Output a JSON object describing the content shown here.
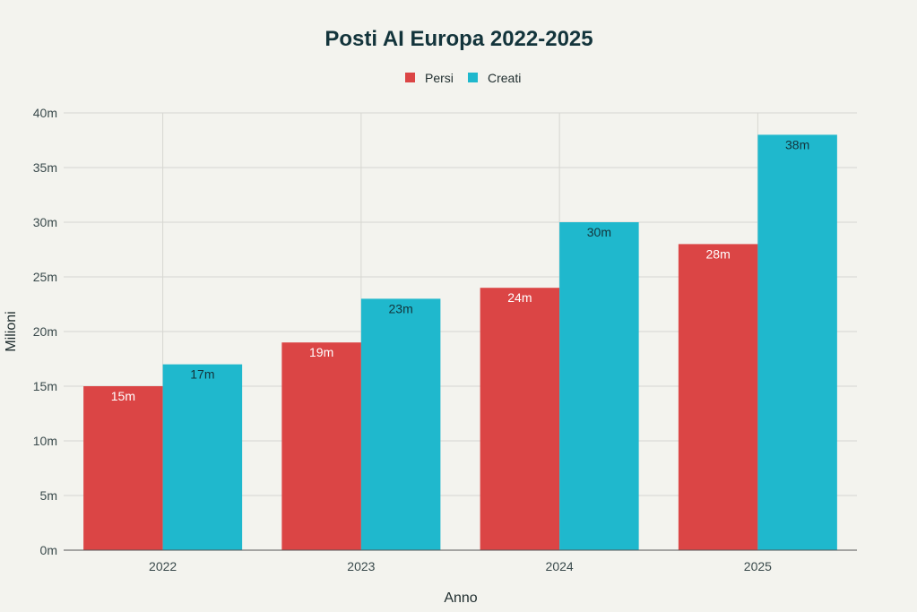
{
  "chart_data": {
    "type": "bar",
    "title": "Posti AI Europa 2022-2025",
    "xlabel": "Anno",
    "ylabel": "Milioni",
    "categories": [
      "2022",
      "2023",
      "2024",
      "2025"
    ],
    "series": [
      {
        "name": "Persi",
        "values": [
          15,
          19,
          24,
          28
        ],
        "labels": [
          "15m",
          "19m",
          "24m",
          "28m"
        ],
        "color": "#db4545",
        "label_color": "#ffffff"
      },
      {
        "name": "Creati",
        "values": [
          17,
          23,
          30,
          38
        ],
        "labels": [
          "17m",
          "23m",
          "30m",
          "38m"
        ],
        "color": "#1fb8cd",
        "label_color": "#13343b"
      }
    ],
    "ylim": [
      0,
      40
    ],
    "yticks": [
      0,
      5,
      10,
      15,
      20,
      25,
      30,
      35,
      40
    ],
    "ytick_labels": [
      "0m",
      "5m",
      "10m",
      "15m",
      "20m",
      "25m",
      "30m",
      "35m",
      "40m"
    ],
    "grid": true,
    "legend_position": "top-center"
  }
}
